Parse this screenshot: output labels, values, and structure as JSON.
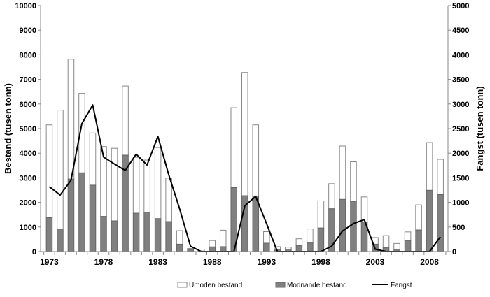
{
  "chart_data": {
    "type": "bar",
    "stacked": true,
    "x": [
      1973,
      1974,
      1975,
      1976,
      1977,
      1978,
      1979,
      1980,
      1981,
      1982,
      1983,
      1984,
      1985,
      1986,
      1987,
      1988,
      1989,
      1990,
      1991,
      1992,
      1993,
      1994,
      1995,
      1996,
      1997,
      1998,
      1999,
      2000,
      2001,
      2002,
      2003,
      2004,
      2005,
      2006,
      2007,
      2008,
      2009
    ],
    "xticks": [
      "1973",
      "1978",
      "1983",
      "1988",
      "1993",
      "1998",
      "2003",
      "2008"
    ],
    "ylabel": "Bestand (tusen tonn)",
    "y2label": "Fangst (tusen tonn)",
    "ylim": [
      0,
      10000
    ],
    "y2lim": [
      0,
      5000
    ],
    "yticks": [
      "0",
      "1000",
      "2000",
      "3000",
      "4000",
      "5000",
      "6000",
      "7000",
      "8000",
      "9000",
      "10000"
    ],
    "y2ticks": [
      "0",
      "500",
      "1000",
      "1500",
      "2000",
      "2500",
      "3000",
      "3500",
      "4000",
      "4500",
      "5000"
    ],
    "legend_position": "bottom",
    "series": [
      {
        "name": "Umoden bestand",
        "kind": "bar",
        "axis": "left",
        "color": "#ffffff",
        "values": [
          3770,
          4830,
          4870,
          3230,
          2120,
          2840,
          2950,
          2810,
          2270,
          2120,
          2890,
          1770,
          550,
          40,
          80,
          260,
          670,
          3250,
          5010,
          2890,
          470,
          110,
          80,
          270,
          570,
          1100,
          1020,
          2170,
          1610,
          1020,
          270,
          480,
          230,
          350,
          1020,
          1940,
          1430
        ]
      },
      {
        "name": "Modnande bestand",
        "kind": "bar",
        "axis": "left",
        "color": "#808080",
        "values": [
          1380,
          920,
          2950,
          3200,
          2700,
          1430,
          1250,
          3920,
          1560,
          1600,
          1340,
          1220,
          300,
          90,
          20,
          190,
          200,
          2600,
          2270,
          2260,
          340,
          90,
          100,
          250,
          350,
          960,
          1740,
          2120,
          2040,
          1200,
          300,
          170,
          100,
          450,
          880,
          2490,
          2320
        ]
      },
      {
        "name": "Fangst",
        "kind": "line",
        "axis": "right",
        "color": "#000000",
        "values": [
          1320,
          1150,
          1450,
          2600,
          2980,
          1920,
          1780,
          1650,
          1980,
          1760,
          2340,
          1560,
          870,
          110,
          0,
          0,
          0,
          0,
          930,
          1120,
          570,
          0,
          0,
          0,
          0,
          0,
          110,
          420,
          570,
          650,
          50,
          0,
          0,
          0,
          0,
          0,
          300
        ]
      }
    ]
  }
}
